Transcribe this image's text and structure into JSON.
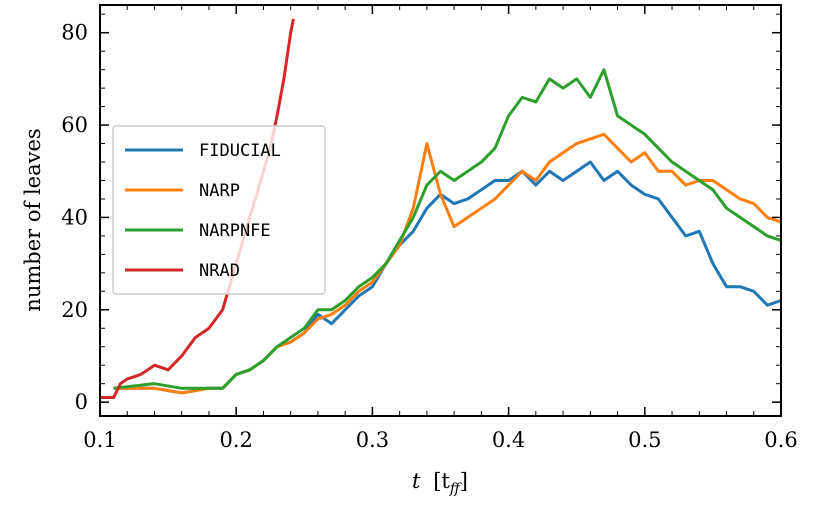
{
  "chart_data": {
    "type": "line",
    "title": "",
    "xlabel_main": "t",
    "xlabel_unit": "[t",
    "xlabel_sub": "ff",
    "xlabel_close": "]",
    "ylabel": "number of leaves",
    "xlim": [
      0.1,
      0.6
    ],
    "ylim": [
      -3,
      86
    ],
    "xticks": [
      0.1,
      0.2,
      0.3,
      0.4,
      0.5,
      0.6
    ],
    "xtick_labels": [
      "0.1",
      "0.2",
      "0.3",
      "0.4",
      "0.5",
      "0.6"
    ],
    "yticks": [
      0,
      20,
      40,
      60,
      80
    ],
    "ytick_labels": [
      "0",
      "20",
      "40",
      "60",
      "80"
    ],
    "legend_position": "upper-left",
    "grid": false,
    "series": [
      {
        "name": "FIDUCIAL",
        "color": "#1f77b4",
        "x": [
          0.11,
          0.14,
          0.16,
          0.18,
          0.19,
          0.2,
          0.21,
          0.22,
          0.23,
          0.24,
          0.25,
          0.26,
          0.27,
          0.28,
          0.29,
          0.3,
          0.31,
          0.32,
          0.33,
          0.34,
          0.35,
          0.36,
          0.37,
          0.38,
          0.39,
          0.4,
          0.41,
          0.42,
          0.43,
          0.44,
          0.45,
          0.46,
          0.47,
          0.48,
          0.49,
          0.5,
          0.51,
          0.52,
          0.53,
          0.54,
          0.55,
          0.56,
          0.57,
          0.58,
          0.59,
          0.6
        ],
        "y": [
          3,
          3,
          2,
          3,
          3,
          6,
          7,
          9,
          12,
          13,
          15,
          19,
          17,
          20,
          23,
          25,
          30,
          34,
          37,
          42,
          45,
          43,
          44,
          46,
          48,
          48,
          50,
          47,
          50,
          48,
          50,
          52,
          48,
          50,
          47,
          45,
          44,
          40,
          36,
          37,
          30,
          25,
          25,
          24,
          21,
          22
        ]
      },
      {
        "name": "NARP",
        "color": "#ff7f0e",
        "x": [
          0.11,
          0.14,
          0.16,
          0.18,
          0.19,
          0.2,
          0.21,
          0.22,
          0.23,
          0.24,
          0.25,
          0.26,
          0.27,
          0.28,
          0.29,
          0.3,
          0.31,
          0.32,
          0.33,
          0.34,
          0.35,
          0.36,
          0.37,
          0.38,
          0.39,
          0.4,
          0.41,
          0.42,
          0.43,
          0.44,
          0.45,
          0.46,
          0.47,
          0.48,
          0.49,
          0.5,
          0.51,
          0.52,
          0.53,
          0.54,
          0.55,
          0.56,
          0.57,
          0.58,
          0.59,
          0.6
        ],
        "y": [
          3,
          3,
          2,
          3,
          3,
          6,
          7,
          9,
          12,
          13,
          15,
          18,
          19,
          21,
          24,
          26,
          30,
          34,
          42,
          56,
          45,
          38,
          40,
          42,
          44,
          47,
          50,
          48,
          52,
          54,
          56,
          57,
          58,
          55,
          52,
          54,
          50,
          50,
          47,
          48,
          48,
          46,
          44,
          43,
          40,
          39
        ]
      },
      {
        "name": "NARPNFE",
        "color": "#2ca02c",
        "x": [
          0.11,
          0.14,
          0.16,
          0.18,
          0.19,
          0.2,
          0.21,
          0.22,
          0.23,
          0.24,
          0.25,
          0.26,
          0.27,
          0.28,
          0.29,
          0.3,
          0.31,
          0.32,
          0.33,
          0.34,
          0.35,
          0.36,
          0.37,
          0.38,
          0.39,
          0.4,
          0.41,
          0.42,
          0.43,
          0.44,
          0.45,
          0.46,
          0.47,
          0.48,
          0.49,
          0.5,
          0.51,
          0.52,
          0.53,
          0.54,
          0.55,
          0.56,
          0.57,
          0.58,
          0.59,
          0.6
        ],
        "y": [
          3,
          4,
          3,
          3,
          3,
          6,
          7,
          9,
          12,
          14,
          16,
          20,
          20,
          22,
          25,
          27,
          30,
          35,
          40,
          47,
          50,
          48,
          50,
          52,
          55,
          62,
          66,
          65,
          70,
          68,
          70,
          66,
          72,
          62,
          60,
          58,
          55,
          52,
          50,
          48,
          46,
          42,
          40,
          38,
          36,
          35
        ]
      },
      {
        "name": "NRAD",
        "color": "#d62728",
        "x": [
          0.1,
          0.11,
          0.115,
          0.12,
          0.13,
          0.14,
          0.15,
          0.16,
          0.17,
          0.18,
          0.19,
          0.2,
          0.21,
          0.22,
          0.225,
          0.23,
          0.235,
          0.24,
          0.242
        ],
        "y": [
          1,
          1,
          4,
          5,
          6,
          8,
          7,
          10,
          14,
          16,
          20,
          30,
          40,
          50,
          55,
          62,
          70,
          80,
          83
        ]
      }
    ]
  }
}
